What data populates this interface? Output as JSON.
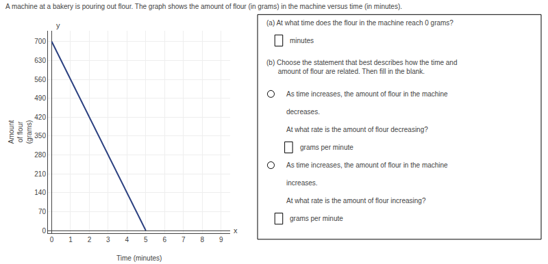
{
  "chart_data": {
    "type": "line",
    "title": "A machine at a bakery is pouring out flour. The graph shows the amount of flour (in grams) in the machine versus time (in minutes).",
    "xlabel": "Time (minutes)",
    "ylabel": "Amount\nof flour\n(grams)",
    "x": [
      0,
      5
    ],
    "values": [
      700,
      0
    ],
    "color": "#2b4080",
    "xlim": [
      -0.2,
      9.5
    ],
    "ylim": [
      -10,
      740
    ],
    "xticks": [
      0,
      1,
      2,
      3,
      4,
      5,
      6,
      7,
      8,
      9
    ],
    "yticks": [
      0,
      70,
      140,
      210,
      280,
      350,
      420,
      490,
      560,
      630,
      700
    ],
    "grid": true,
    "axis_end_labels": [
      "x",
      "y"
    ],
    "annotations": [
      "(a) At what time does the flour in the machine reach 0 grams?",
      "minutes",
      "(b) Choose the statement that best describes how the time and\n      amount of flour are related. Then fill in the blank.",
      "As time increases, the amount of flour in the machine",
      "decreases.",
      "At what rate is the amount of flour decreasing?",
      "grams per minute",
      "As time increases, the amount of flour in the machine",
      "increases.",
      "At what rate is the amount of flour increasing?",
      "grams per minute"
    ]
  }
}
